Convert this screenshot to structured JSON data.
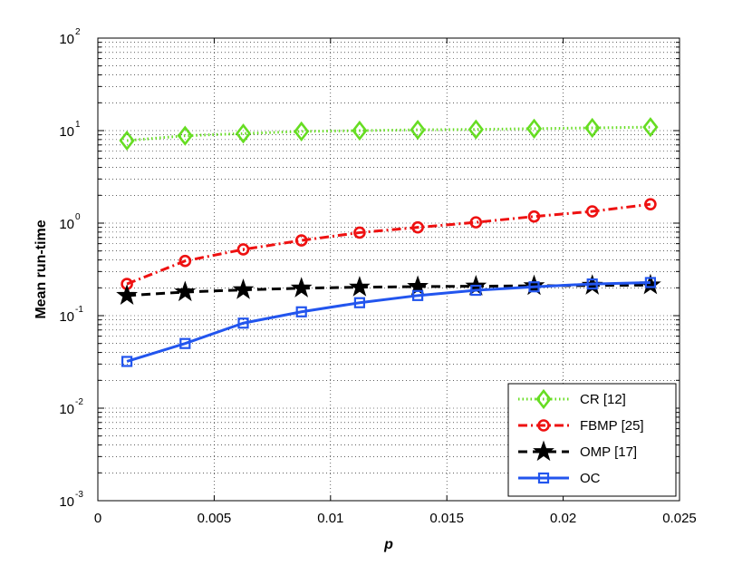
{
  "chart_data": {
    "type": "line",
    "title": "",
    "xlabel": "p",
    "ylabel": "Mean run-time",
    "xlim": [
      0,
      0.025
    ],
    "ylim": [
      0.001,
      100
    ],
    "yscale": "log",
    "grid": true,
    "legend_position": "bottom-right",
    "x_ticks": [
      "0",
      "0.005",
      "0.01",
      "0.015",
      "0.02",
      "0.025"
    ],
    "y_ticks": [
      {
        "base": "10",
        "exp": "-3"
      },
      {
        "base": "10",
        "exp": "-2"
      },
      {
        "base": "10",
        "exp": "-1"
      },
      {
        "base": "10",
        "exp": "0"
      },
      {
        "base": "10",
        "exp": "1"
      },
      {
        "base": "10",
        "exp": "2"
      }
    ],
    "x": [
      0.00125,
      0.00375,
      0.00625,
      0.00875,
      0.01125,
      0.01375,
      0.01625,
      0.01875,
      0.02125,
      0.02375
    ],
    "series": [
      {
        "name": "CR [12]",
        "color": "#66dd22",
        "dash": "dotted",
        "marker": "diamond",
        "values": [
          7.8,
          8.8,
          9.3,
          9.8,
          10.0,
          10.2,
          10.3,
          10.5,
          10.7,
          10.9
        ]
      },
      {
        "name": "FBMP [25]",
        "color": "#ee1111",
        "dash": "dashdot",
        "marker": "circle",
        "values": [
          0.22,
          0.39,
          0.52,
          0.65,
          0.79,
          0.9,
          1.02,
          1.18,
          1.34,
          1.6
        ]
      },
      {
        "name": "OMP [17]",
        "color": "#000000",
        "dash": "dashed",
        "marker": "star",
        "values": [
          0.165,
          0.18,
          0.19,
          0.198,
          0.203,
          0.206,
          0.208,
          0.21,
          0.212,
          0.214
        ]
      },
      {
        "name": "OC",
        "color": "#2255ee",
        "dash": "solid",
        "marker": "square",
        "values": [
          0.032,
          0.05,
          0.083,
          0.11,
          0.138,
          0.165,
          0.188,
          0.205,
          0.22,
          0.228
        ]
      }
    ]
  }
}
